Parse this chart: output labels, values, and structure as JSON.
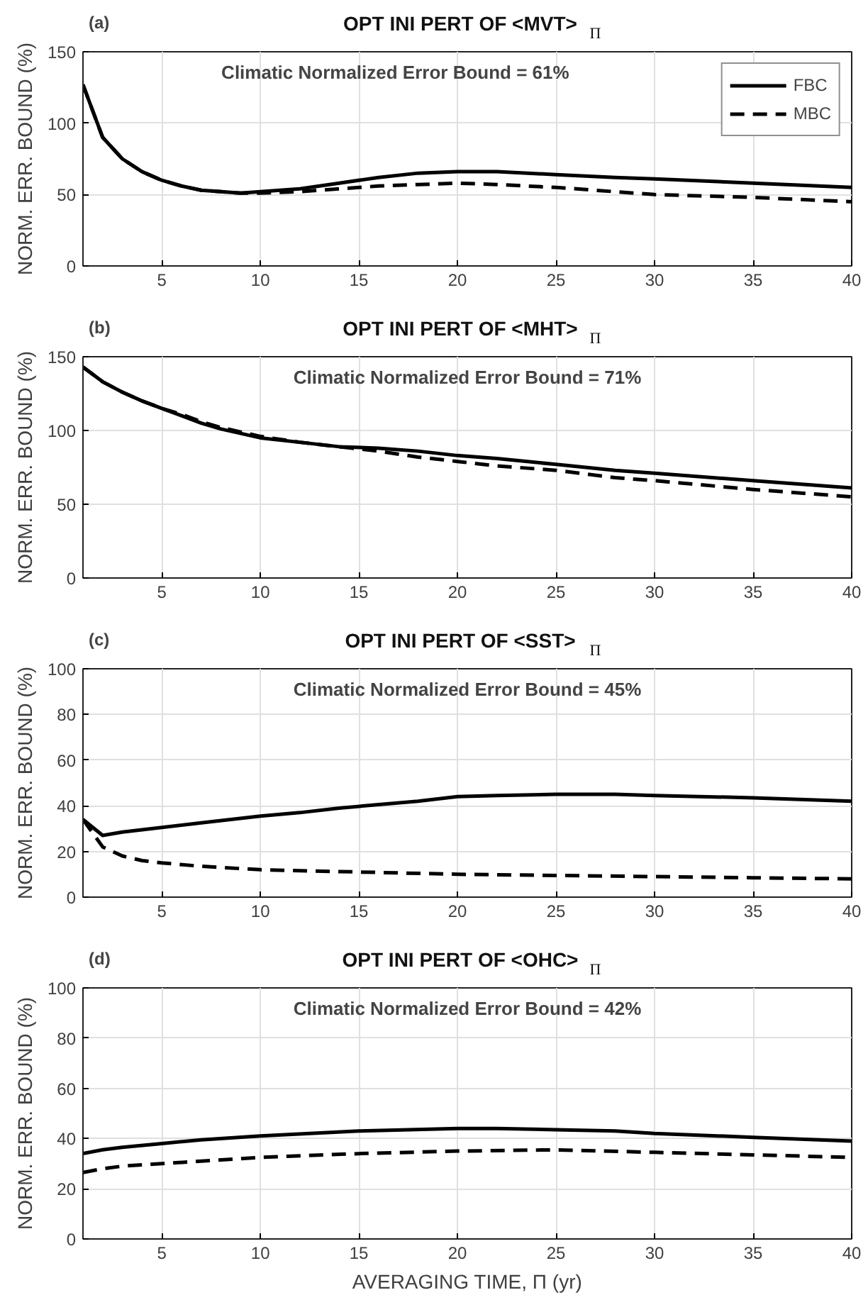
{
  "chart_data": [
    {
      "type": "line",
      "title": "OPT INI PERT OF <MVT>$_{Π}$",
      "ylabel": "NORM. ERR. BOUND (%)",
      "annotations": [
        "(a)",
        "Climatic Normalized Error Bound = 61%"
      ],
      "xlim": [
        1,
        40
      ],
      "xticks": [
        5,
        10,
        15,
        20,
        25,
        30,
        35,
        40
      ],
      "ylim": [
        0,
        150
      ],
      "yticks": [
        0,
        50,
        100,
        150
      ],
      "grid": true,
      "legend": "top right",
      "series": [
        {
          "name": "FBC",
          "color": "#000000",
          "line_style": "solid",
          "x": [
            1,
            2,
            3,
            4,
            5,
            6,
            7,
            8,
            9,
            10,
            12,
            14,
            16,
            18,
            20,
            22,
            25,
            28,
            30,
            35,
            40
          ],
          "values": [
            127,
            90,
            75,
            66,
            60,
            56,
            53,
            52,
            51,
            52,
            54,
            58,
            62,
            65,
            66,
            66,
            64,
            62,
            61,
            58,
            55
          ]
        },
        {
          "name": "MBC",
          "color": "#000000",
          "line_style": "dashed",
          "x": [
            1,
            2,
            3,
            4,
            5,
            6,
            7,
            8,
            9,
            10,
            12,
            14,
            16,
            18,
            20,
            22,
            25,
            28,
            30,
            35,
            40
          ],
          "values": [
            127,
            90,
            75,
            66,
            60,
            56,
            53,
            52,
            51,
            51,
            52,
            54,
            56,
            57,
            58,
            57,
            55,
            52,
            50,
            48,
            45
          ]
        }
      ]
    },
    {
      "type": "line",
      "title": "OPT INI PERT OF <MHT>$_{Π}$",
      "ylabel": "NORM. ERR. BOUND (%)",
      "annotations": [
        "(b)",
        "Climatic Normalized Error Bound = 71%"
      ],
      "xlim": [
        1,
        40
      ],
      "xticks": [
        5,
        10,
        15,
        20,
        25,
        30,
        35,
        40
      ],
      "ylim": [
        0,
        150
      ],
      "yticks": [
        0,
        50,
        100,
        150
      ],
      "grid": true,
      "series": [
        {
          "color": "#000000",
          "line_style": "solid",
          "x": [
            1,
            2,
            3,
            4,
            5,
            6,
            7,
            8,
            9,
            10,
            12,
            14,
            16,
            18,
            20,
            22,
            25,
            28,
            30,
            35,
            40
          ],
          "values": [
            143,
            133,
            126,
            120,
            115,
            110,
            105,
            101,
            98,
            95,
            92,
            89,
            88,
            86,
            83,
            81,
            77,
            73,
            71,
            66,
            61
          ]
        },
        {
          "color": "#000000",
          "line_style": "dashed",
          "x": [
            1,
            2,
            3,
            4,
            5,
            6,
            7,
            8,
            9,
            10,
            12,
            14,
            16,
            18,
            20,
            22,
            25,
            28,
            30,
            35,
            40
          ],
          "values": [
            143,
            133,
            126,
            120,
            115,
            111,
            106,
            102,
            99,
            96,
            92,
            89,
            86,
            82,
            79,
            76,
            73,
            68,
            66,
            60,
            55
          ]
        }
      ]
    },
    {
      "type": "line",
      "title": "OPT INI PERT OF <SST>$_{Π}$",
      "ylabel": "NORM. ERR. BOUND (%)",
      "annotations": [
        "(c)",
        "Climatic Normalized Error Bound = 45%"
      ],
      "xlim": [
        1,
        40
      ],
      "xticks": [
        5,
        10,
        15,
        20,
        25,
        30,
        35,
        40
      ],
      "ylim": [
        0,
        100
      ],
      "yticks": [
        0,
        20,
        40,
        60,
        80,
        100
      ],
      "grid": true,
      "series": [
        {
          "color": "#000000",
          "line_style": "solid",
          "x": [
            1,
            2,
            3,
            4,
            5,
            7,
            10,
            12,
            14,
            16,
            18,
            20,
            22,
            25,
            28,
            30,
            35,
            40
          ],
          "values": [
            34,
            27,
            28.5,
            29.5,
            30.5,
            32.5,
            35.5,
            37,
            39,
            40.5,
            42,
            44,
            44.5,
            45,
            45,
            44.5,
            43.5,
            42
          ]
        },
        {
          "color": "#000000",
          "line_style": "dashed",
          "x": [
            1,
            2,
            3,
            4,
            5,
            7,
            10,
            15,
            20,
            25,
            30,
            35,
            40
          ],
          "values": [
            34,
            22,
            18,
            16,
            15,
            13.5,
            12,
            11,
            10,
            9.5,
            9,
            8.5,
            8
          ]
        }
      ]
    },
    {
      "type": "line",
      "title": "OPT INI PERT OF <OHC>$_{Π}$",
      "xlabel": "AVERAGING TIME, Π (yr)",
      "ylabel": "NORM. ERR. BOUND (%)",
      "annotations": [
        "(d)",
        "Climatic Normalized Error Bound = 42%"
      ],
      "xlim": [
        1,
        40
      ],
      "xticks": [
        5,
        10,
        15,
        20,
        25,
        30,
        35,
        40
      ],
      "ylim": [
        0,
        100
      ],
      "yticks": [
        0,
        20,
        40,
        60,
        80,
        100
      ],
      "grid": true,
      "series": [
        {
          "color": "#000000",
          "line_style": "solid",
          "x": [
            1,
            2,
            3,
            5,
            7,
            10,
            15,
            20,
            22,
            25,
            28,
            30,
            35,
            40
          ],
          "values": [
            34,
            35.5,
            36.5,
            38,
            39.5,
            41,
            43,
            44,
            44,
            43.5,
            43,
            42,
            40.5,
            39
          ]
        },
        {
          "color": "#000000",
          "line_style": "dashed",
          "x": [
            1,
            2,
            3,
            5,
            7,
            10,
            15,
            20,
            25,
            30,
            35,
            40
          ],
          "values": [
            26.5,
            28,
            29,
            30,
            31,
            32.5,
            34,
            35,
            35.5,
            34.5,
            33.5,
            32.5
          ]
        }
      ]
    }
  ]
}
